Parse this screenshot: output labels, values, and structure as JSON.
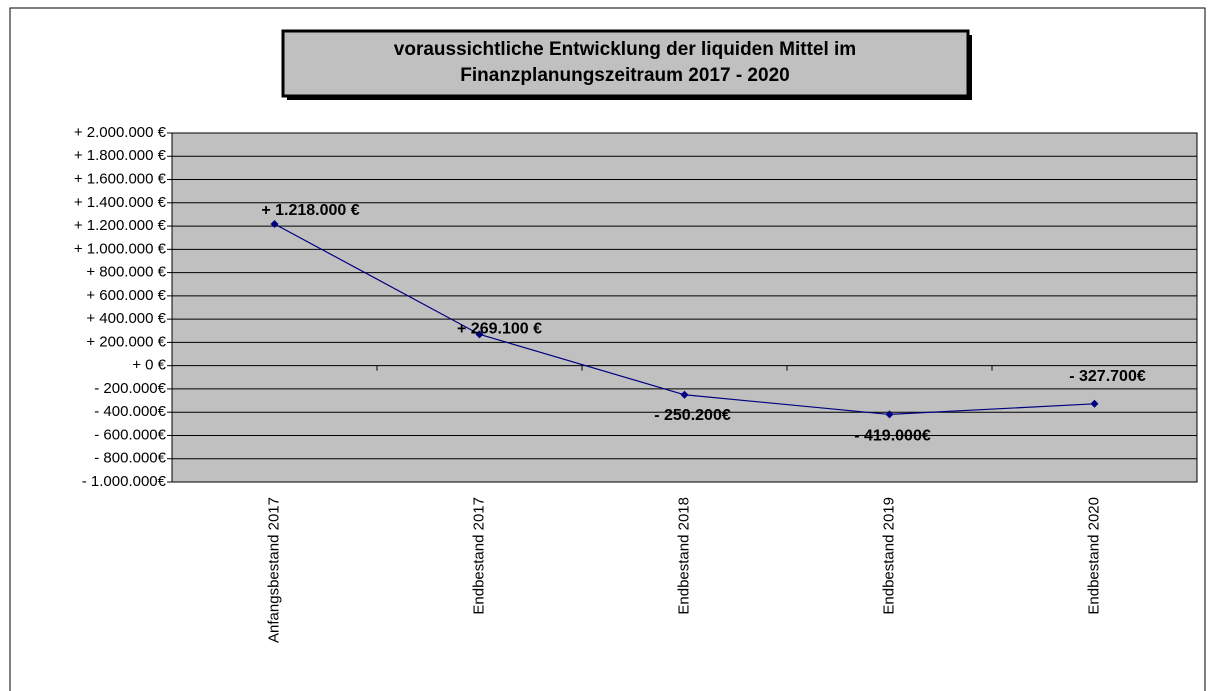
{
  "chart_data": {
    "type": "line",
    "title": [
      "voraussichtliche Entwicklung der  liquiden Mittel im",
      "Finanzplanungszeitraum 2017 -  2020"
    ],
    "categories": [
      "Anfangsbestand 2017",
      "Endbestand 2017",
      "Endbestand 2018",
      "Endbestand 2019",
      "Endbestand 2020"
    ],
    "series": [
      {
        "name": null,
        "color": "#000080",
        "values": [
          1218000,
          269100,
          -250200,
          -419000,
          -327700
        ],
        "value_labels": [
          "+ 1.218.000  €",
          "+ 269.100  €",
          "- 250.200€",
          "- 419.000€",
          "- 327.700€"
        ]
      }
    ],
    "ylim": [
      -1000000,
      2000000
    ],
    "yticks": [
      {
        "value": -1000000,
        "label": "- 1.000.000€"
      },
      {
        "value": -800000,
        "label": "- 800.000€"
      },
      {
        "value": -600000,
        "label": "- 600.000€"
      },
      {
        "value": -400000,
        "label": "- 400.000€"
      },
      {
        "value": -200000,
        "label": "- 200.000€"
      },
      {
        "value": 0,
        "label": "+ 0 €"
      },
      {
        "value": 200000,
        "label": "+ 200.000 €"
      },
      {
        "value": 400000,
        "label": "+ 400.000 €"
      },
      {
        "value": 600000,
        "label": "+ 600.000 €"
      },
      {
        "value": 800000,
        "label": "+ 800.000 €"
      },
      {
        "value": 1000000,
        "label": "+ 1.000.000 €"
      },
      {
        "value": 1200000,
        "label": "+ 1.200.000 €"
      },
      {
        "value": 1400000,
        "label": "+ 1.400.000 €"
      },
      {
        "value": 1600000,
        "label": "+ 1.600.000 €"
      },
      {
        "value": 1800000,
        "label": "+ 1.800.000 €"
      },
      {
        "value": 2000000,
        "label": "+ 2.000.000 €"
      }
    ],
    "grid": true,
    "plot_background": "#c0c0c0"
  }
}
